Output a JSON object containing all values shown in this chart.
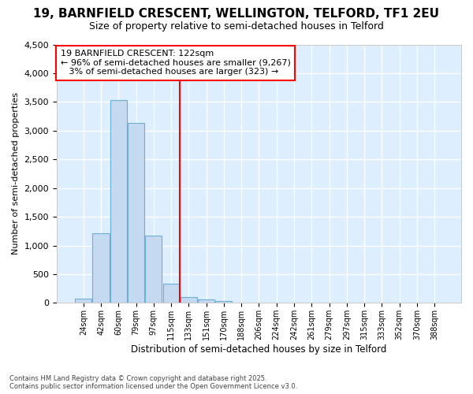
{
  "title_line1": "19, BARNFIELD CRESCENT, WELLINGTON, TELFORD, TF1 2EU",
  "title_line2": "Size of property relative to semi-detached houses in Telford",
  "xlabel": "Distribution of semi-detached houses by size in Telford",
  "ylabel": "Number of semi-detached properties",
  "categories": [
    "24sqm",
    "42sqm",
    "60sqm",
    "79sqm",
    "97sqm",
    "115sqm",
    "133sqm",
    "151sqm",
    "170sqm",
    "188sqm",
    "206sqm",
    "224sqm",
    "242sqm",
    "261sqm",
    "279sqm",
    "297sqm",
    "315sqm",
    "333sqm",
    "352sqm",
    "370sqm",
    "388sqm"
  ],
  "values": [
    75,
    1220,
    3530,
    3130,
    1170,
    340,
    100,
    65,
    30,
    0,
    0,
    0,
    0,
    0,
    0,
    0,
    0,
    0,
    0,
    0,
    0
  ],
  "bar_color": "#c5d9f0",
  "bar_edge_color": "#6baed6",
  "vline_x": 5.5,
  "vline_color": "red",
  "annotation_text": "19 BARNFIELD CRESCENT: 122sqm\n← 96% of semi-detached houses are smaller (9,267)\n   3% of semi-detached houses are larger (323) →",
  "annotation_box_color": "white",
  "annotation_box_edge_color": "red",
  "ylim": [
    0,
    4500
  ],
  "yticks": [
    0,
    500,
    1000,
    1500,
    2000,
    2500,
    3000,
    3500,
    4000,
    4500
  ],
  "background_color": "#ffffff",
  "plot_background": "#ddeeff",
  "grid_color": "#ffffff",
  "title1_fontsize": 11,
  "title2_fontsize": 9,
  "footer_line1": "Contains HM Land Registry data © Crown copyright and database right 2025.",
  "footer_line2": "Contains public sector information licensed under the Open Government Licence v3.0."
}
